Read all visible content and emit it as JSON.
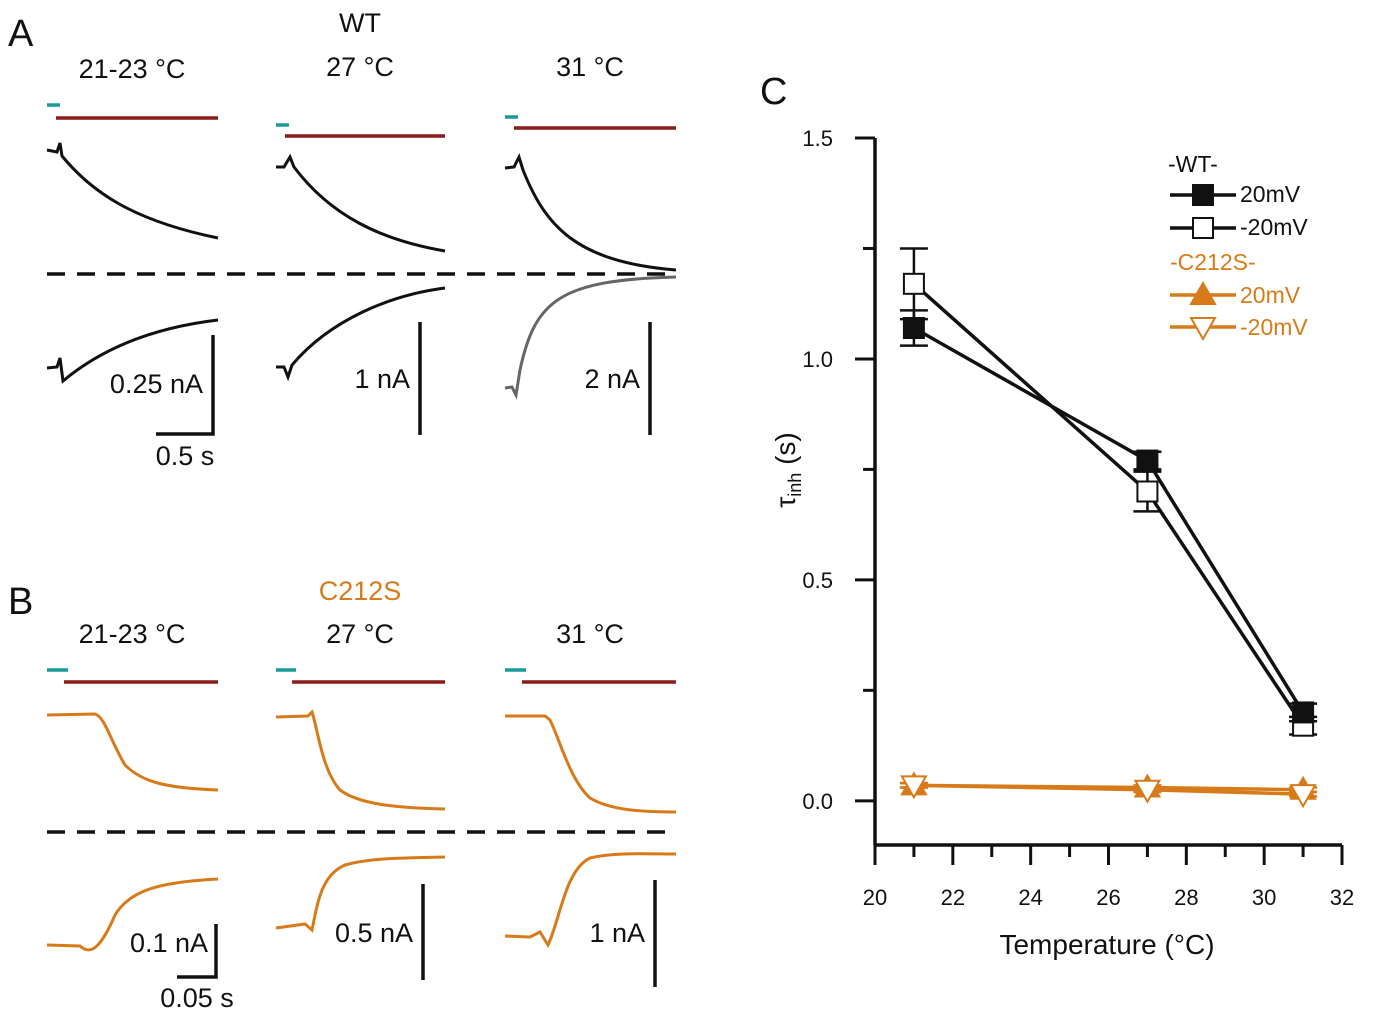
{
  "colors": {
    "wt": "#111111",
    "mutant": "#d77a1a",
    "gray": "#666666",
    "cue": "#1a9a9a",
    "stim": "#8b1a1a"
  },
  "panel_a": {
    "label": "A",
    "group": "WT",
    "conditions": [
      {
        "temp": "21-23 °C",
        "scale": "0.25 nA",
        "time_scale": "0.5 s"
      },
      {
        "temp": "27 °C",
        "scale": "1 nA"
      },
      {
        "temp": "31 °C",
        "scale": "2 nA"
      }
    ]
  },
  "panel_b": {
    "label": "B",
    "group": "C212S",
    "conditions": [
      {
        "temp": "21-23 °C",
        "scale": "0.1 nA",
        "time_scale": "0.05 s"
      },
      {
        "temp": "27 °C",
        "scale": "0.5 nA"
      },
      {
        "temp": "31 °C",
        "scale": "1 nA"
      }
    ]
  },
  "panel_c": {
    "label": "C",
    "legend": {
      "wt_header": "-WT-",
      "mut_header": "-C212S-",
      "pos_label": "20mV",
      "neg_label": "-20mV"
    }
  },
  "chart_data": {
    "type": "line",
    "xlabel": "Temperature (°C)",
    "ylabel": "τinh (s)",
    "xlim": [
      20,
      32
    ],
    "ylim": [
      -0.1,
      1.5
    ],
    "xticks": [
      20,
      22,
      24,
      26,
      28,
      30,
      32
    ],
    "yticks": [
      0.0,
      0.5,
      1.0,
      1.5
    ],
    "x": [
      21,
      27,
      31
    ],
    "series": [
      {
        "group": "WT",
        "name": "20mV",
        "marker": "filled-square",
        "values": [
          1.07,
          0.77,
          0.2
        ],
        "err": [
          0.04,
          0.02,
          0.02
        ]
      },
      {
        "group": "WT",
        "name": "-20mV",
        "marker": "open-square",
        "values": [
          1.17,
          0.7,
          0.17
        ],
        "err": [
          0.08,
          0.045,
          0.02
        ]
      },
      {
        "group": "C212S",
        "name": "20mV",
        "marker": "filled-triangle",
        "values": [
          0.035,
          0.03,
          0.025
        ],
        "err": [
          0.005,
          0.005,
          0.005
        ]
      },
      {
        "group": "C212S",
        "name": "-20mV",
        "marker": "open-triangle-down",
        "values": [
          0.035,
          0.025,
          0.015
        ],
        "err": [
          0.005,
          0.005,
          0.005
        ]
      }
    ],
    "legend_position": "top-right"
  }
}
